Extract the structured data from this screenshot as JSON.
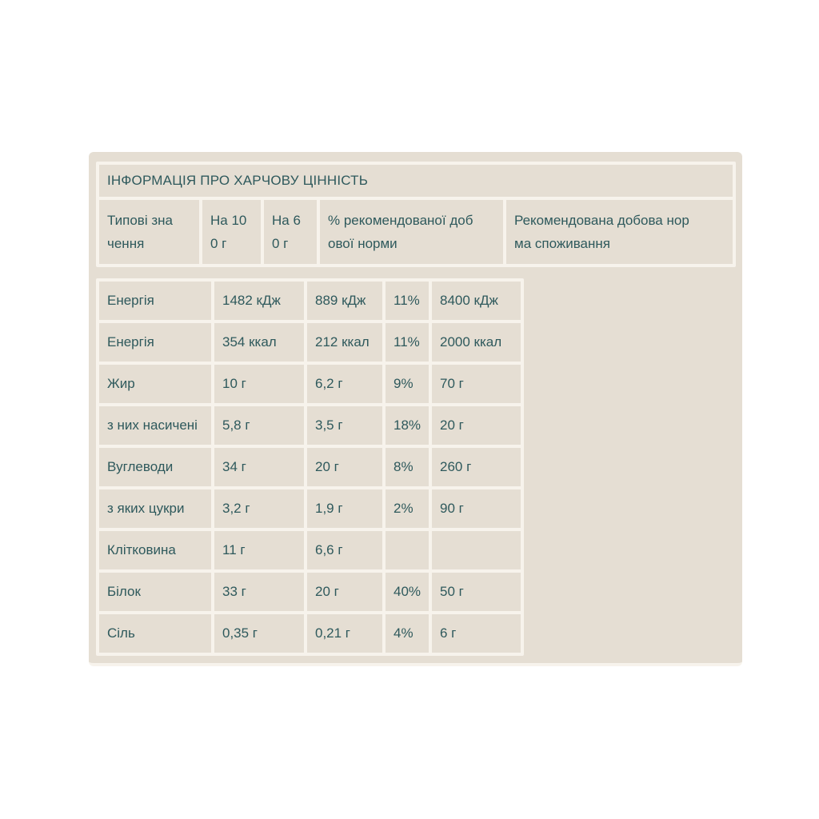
{
  "colors": {
    "page_background": "#ffffff",
    "panel_background": "#e5ded3",
    "grid_line": "#f7f3ec",
    "text": "#2e595c"
  },
  "nutrition_table": {
    "title": "ІНФОРМАЦІЯ ПРО ХАРЧОВУ ЦІННІСТЬ",
    "columns": [
      {
        "label": "Типові зна\nчення"
      },
      {
        "label": "На 10\n0 г"
      },
      {
        "label": "На 6\n0 г"
      },
      {
        "label": "% рекомендованої доб\nової норми"
      },
      {
        "label": "Рекомендована добова нор\nма споживання"
      }
    ],
    "rows": [
      {
        "name": "Енергія",
        "per_100g": "1482 кДж",
        "per_60g": "889 кДж",
        "percent_daily": "11%",
        "recommended_daily": "8400 кДж"
      },
      {
        "name": "Енергія",
        "per_100g": "354 ккал",
        "per_60g": "212 ккал",
        "percent_daily": "11%",
        "recommended_daily": "2000 ккал"
      },
      {
        "name": "Жир",
        "per_100g": "10 г",
        "per_60g": "6,2 г",
        "percent_daily": "9%",
        "recommended_daily": "70 г"
      },
      {
        "name": "з них насичені",
        "per_100g": "5,8 г",
        "per_60g": "3,5 г",
        "percent_daily": "18%",
        "recommended_daily": "20 г"
      },
      {
        "name": "Вуглеводи",
        "per_100g": "34 г",
        "per_60g": "20 г",
        "percent_daily": "8%",
        "recommended_daily": "260 г"
      },
      {
        "name": "з яких цукри",
        "per_100g": "3,2 г",
        "per_60g": "1,9 г",
        "percent_daily": "2%",
        "recommended_daily": "90 г"
      },
      {
        "name": "Клітковина",
        "per_100g": "11 г",
        "per_60g": "6,6 г",
        "percent_daily": "",
        "recommended_daily": ""
      },
      {
        "name": "Білок",
        "per_100g": "33 г",
        "per_60g": "20 г",
        "percent_daily": "40%",
        "recommended_daily": "50 г"
      },
      {
        "name": "Сіль",
        "per_100g": "0,35 г",
        "per_60g": "0,21 г",
        "percent_daily": "4%",
        "recommended_daily": "6 г"
      }
    ]
  }
}
